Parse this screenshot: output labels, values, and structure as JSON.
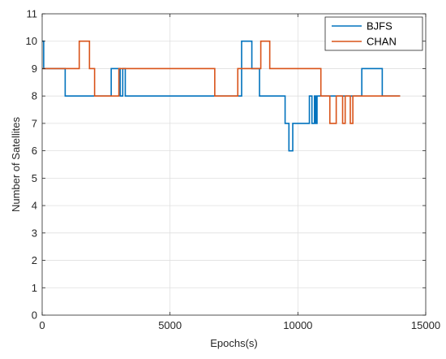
{
  "chart_data": {
    "type": "line",
    "xlabel": "Epochs(s)",
    "ylabel": "Number of Satellites",
    "xlim": [
      0,
      15000
    ],
    "ylim": [
      0,
      11
    ],
    "xticks": [
      0,
      5000,
      10000,
      15000
    ],
    "yticks": [
      0,
      1,
      2,
      3,
      4,
      5,
      6,
      7,
      8,
      9,
      10,
      11
    ],
    "grid": true,
    "legend_position": "top-right",
    "series": [
      {
        "name": "BJFS",
        "color": "#0072BD",
        "x": [
          0,
          60,
          60,
          900,
          900,
          2700,
          2700,
          3050,
          3050,
          3150,
          3150,
          3250,
          3250,
          7800,
          7800,
          8200,
          8200,
          8500,
          8500,
          9500,
          9500,
          9650,
          9650,
          9800,
          9800,
          10450,
          10450,
          10550,
          10550,
          10650,
          10650,
          10700,
          10700,
          10750,
          10750,
          10820,
          10820,
          12500,
          12500,
          13300,
          13300,
          14000
        ],
        "y": [
          10,
          10,
          9,
          9,
          8,
          8,
          9,
          9,
          8,
          8,
          9,
          9,
          8,
          8,
          10,
          10,
          9,
          9,
          8,
          8,
          7,
          7,
          6,
          6,
          7,
          7,
          8,
          8,
          7,
          7,
          8,
          8,
          7,
          7,
          8,
          8,
          8,
          8,
          9,
          9,
          8,
          8
        ]
      },
      {
        "name": "CHAN",
        "color": "#D95319",
        "x": [
          0,
          1450,
          1450,
          1850,
          1850,
          2050,
          2050,
          3000,
          3000,
          3050,
          3050,
          6750,
          6750,
          7650,
          7650,
          8550,
          8550,
          8900,
          8900,
          10900,
          10900,
          11250,
          11250,
          11500,
          11500,
          11750,
          11750,
          11850,
          11850,
          12050,
          12050,
          12150,
          12150,
          14000
        ],
        "y": [
          9,
          9,
          10,
          10,
          9,
          9,
          8,
          8,
          9,
          9,
          9,
          9,
          8,
          8,
          9,
          9,
          10,
          10,
          9,
          9,
          8,
          8,
          7,
          7,
          8,
          8,
          7,
          7,
          8,
          8,
          7,
          7,
          8,
          8
        ]
      }
    ]
  }
}
